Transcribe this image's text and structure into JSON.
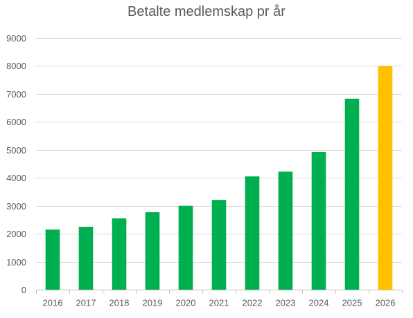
{
  "chart_data": {
    "type": "bar",
    "title": "Betalte medlemskap pr år",
    "xlabel": "",
    "ylabel": "",
    "categories": [
      "2016",
      "2017",
      "2018",
      "2019",
      "2020",
      "2021",
      "2022",
      "2023",
      "2024",
      "2025",
      "2026"
    ],
    "series": [
      {
        "values": [
          2150,
          2250,
          2550,
          2770,
          3000,
          3210,
          4050,
          4220,
          4920,
          6830,
          8000
        ],
        "colors": [
          "#00b050",
          "#00b050",
          "#00b050",
          "#00b050",
          "#00b050",
          "#00b050",
          "#00b050",
          "#00b050",
          "#00b050",
          "#00b050",
          "#ffc000"
        ]
      }
    ],
    "ylim": [
      0,
      9000
    ],
    "yticks": [
      0,
      1000,
      2000,
      3000,
      4000,
      5000,
      6000,
      7000,
      8000,
      9000
    ],
    "grid": true,
    "legend": "none",
    "colors": {
      "bar_default": "#00b050",
      "bar_highlight": "#ffc000",
      "gridline": "#d9d9d9",
      "axis": "#bfbfbf",
      "text": "#595959"
    }
  }
}
